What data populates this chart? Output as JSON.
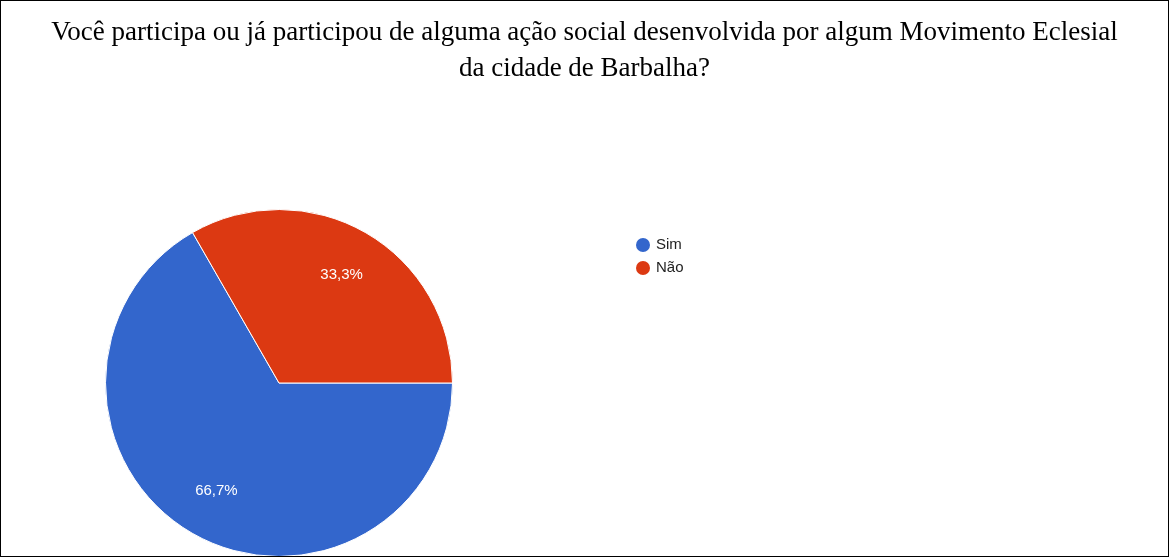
{
  "chart_data": {
    "type": "pie",
    "title": "Você participa ou já participou de alguma ação social desenvolvida por algum Movimento Eclesial da cidade de Barbalha?",
    "categories": [
      "Sim",
      "Não"
    ],
    "values": [
      66.7,
      33.3
    ],
    "colors": [
      "#3366cc",
      "#dc3912"
    ],
    "value_labels": [
      "66,7%",
      "33,3%"
    ],
    "legend": "right"
  }
}
